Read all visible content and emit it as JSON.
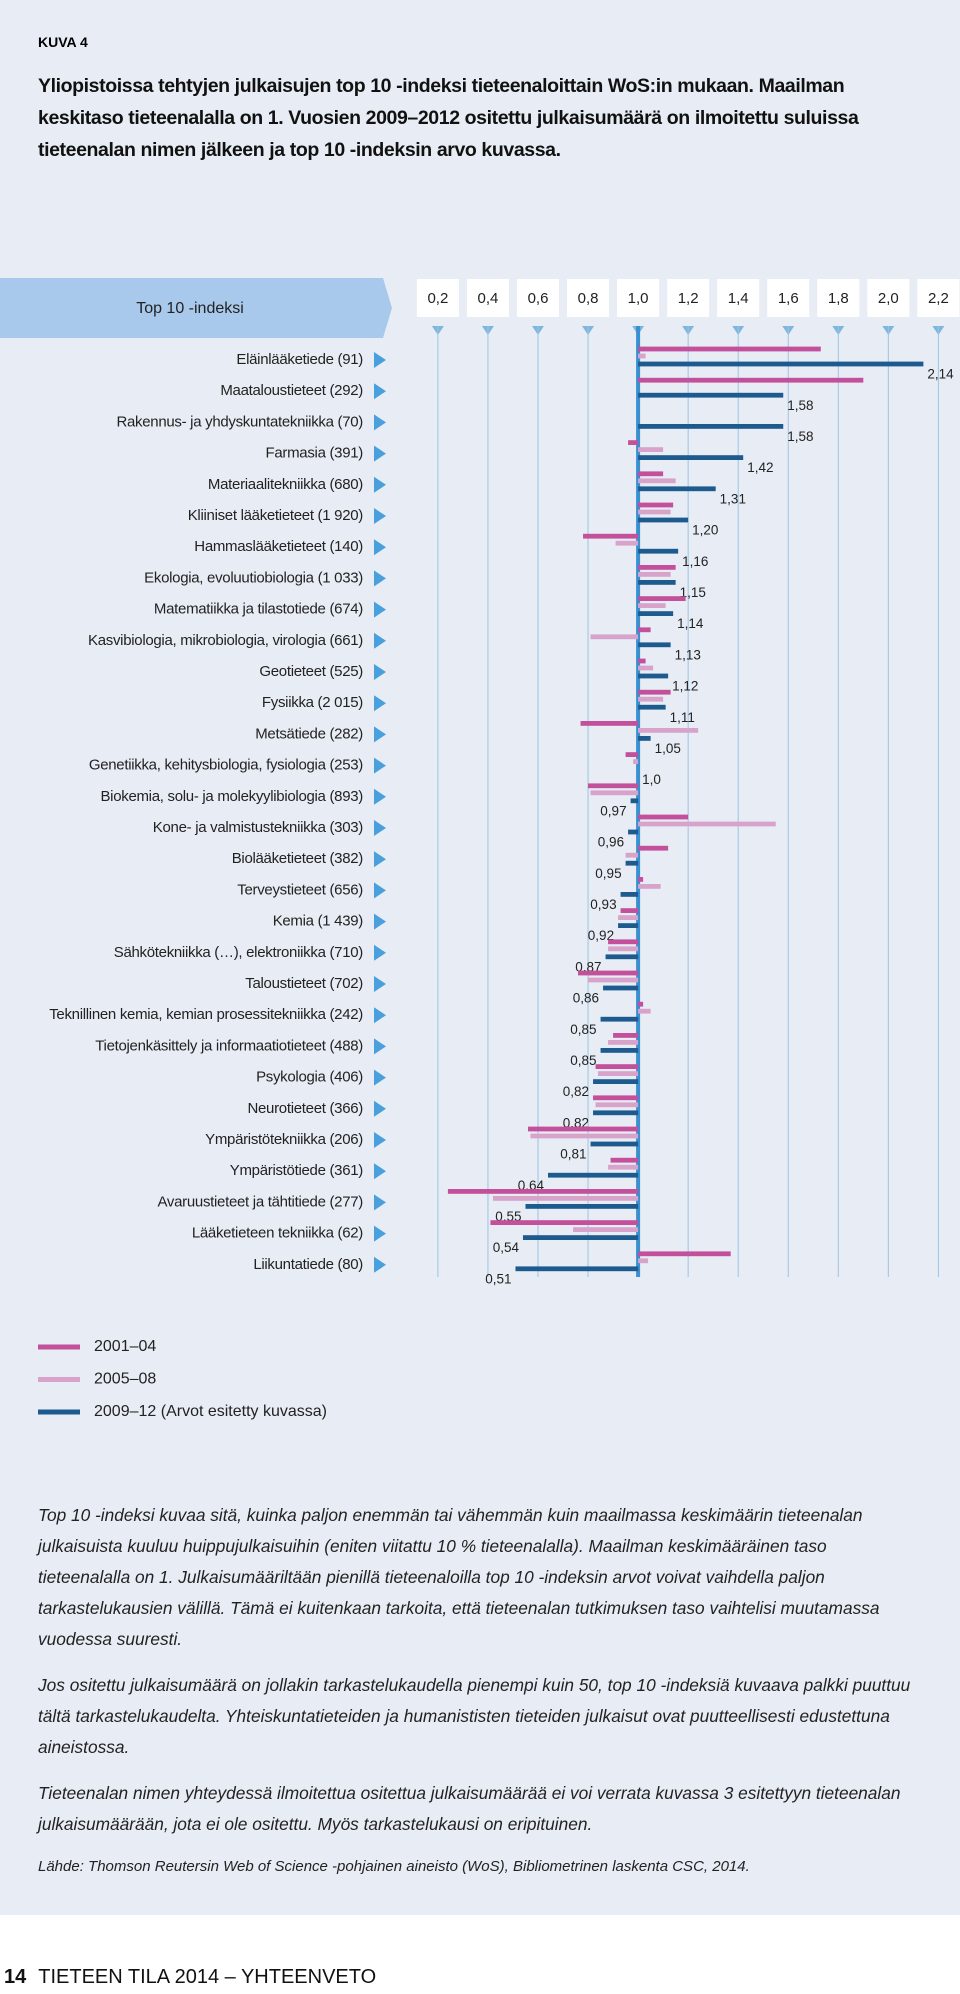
{
  "header": {
    "figure_label": "KUVA 4",
    "title": "Yliopistoissa tehtyjen julkaisujen top 10 -indeksi tieteenaloittain WoS:in mukaan. Maailman keskitaso tieteenalalla on 1. Vuosien 2009–2012 ositettu julkaisumäärä on ilmoitettu suluissa tieteenalan nimen jälkeen ja top 10 -indeksin arvo kuvassa."
  },
  "chart_data": {
    "type": "hbar",
    "x_label": "Top 10 -indeksi",
    "baseline": 1,
    "xlim": [
      0.2,
      2.2
    ],
    "xticks": [
      {
        "value": 0.2,
        "label": "0,2"
      },
      {
        "value": 0.4,
        "label": "0,4"
      },
      {
        "value": 0.6,
        "label": "0,6"
      },
      {
        "value": 0.8,
        "label": "0,8"
      },
      {
        "value": 1.0,
        "label": "1,0"
      },
      {
        "value": 1.2,
        "label": "1,2"
      },
      {
        "value": 1.4,
        "label": "1,4"
      },
      {
        "value": 1.6,
        "label": "1,6"
      },
      {
        "value": 1.8,
        "label": "1,8"
      },
      {
        "value": 2.0,
        "label": "2,0"
      },
      {
        "value": 2.2,
        "label": "2,2"
      }
    ],
    "categories": [
      "Eläinlääketiede (91)",
      "Maataloustieteet (292)",
      "Rakennus- ja yhdyskuntatekniikka (70)",
      "Farmasia (391)",
      "Materiaalitekniikka (680)",
      "Kliiniset lääketieteet (1 920)",
      "Hammaslääketieteet (140)",
      "Ekologia, evoluutiobiologia (1 033)",
      "Matematiikka ja tilastotiede (674)",
      "Kasvibiologia, mikrobiologia, virologia (661)",
      "Geotieteet (525)",
      "Fysiikka (2 015)",
      "Metsätiede (282)",
      "Genetiikka, kehitysbiologia, fysiologia (253)",
      "Biokemia, solu- ja molekyylibiologia (893)",
      "Kone- ja valmistustekniikka (303)",
      "Biolääketieteet (382)",
      "Terveystieteet (656)",
      "Kemia (1 439)",
      "Sähkötekniikka (…), elektroniikka (710)",
      "Taloustieteet (702)",
      "Teknillinen kemia, kemian prosessitekniikka (242)",
      "Tietojenkäsittely ja informaatiotieteet (488)",
      "Psykologia (406)",
      "Neurotieteet (366)",
      "Ympäristötekniikka (206)",
      "Ympäristötiede (361)",
      "Avaruustieteet ja tähtitiede (277)",
      "Lääketieteen tekniikka (62)",
      "Liikuntatiede (80)"
    ],
    "series": [
      {
        "name": "2001–04",
        "color": "#c2509a",
        "values": [
          1.73,
          1.9,
          null,
          0.96,
          1.1,
          1.14,
          0.78,
          1.15,
          1.19,
          1.05,
          1.03,
          1.13,
          0.77,
          0.95,
          0.8,
          1.2,
          1.12,
          1.02,
          0.93,
          0.88,
          0.76,
          1.02,
          0.9,
          0.83,
          0.82,
          0.56,
          0.89,
          0.24,
          0.41,
          1.37
        ]
      },
      {
        "name": "2005–08",
        "color": "#d7a3cb",
        "values": [
          1.03,
          null,
          null,
          1.1,
          1.15,
          1.13,
          0.91,
          1.13,
          1.11,
          0.81,
          1.06,
          1.1,
          1.24,
          0.98,
          0.81,
          1.55,
          0.95,
          1.09,
          0.92,
          0.88,
          0.8,
          1.05,
          0.88,
          0.84,
          0.83,
          0.57,
          0.88,
          0.42,
          0.74,
          1.04
        ]
      },
      {
        "name": "2009–12 (Arvot esitetty kuvassa)",
        "color": "#1d5a8e",
        "values": [
          2.14,
          1.58,
          1.58,
          1.42,
          1.31,
          1.2,
          1.16,
          1.15,
          1.14,
          1.13,
          1.12,
          1.11,
          1.05,
          1.0,
          0.97,
          0.96,
          0.95,
          0.93,
          0.92,
          0.87,
          0.86,
          0.85,
          0.85,
          0.82,
          0.82,
          0.81,
          0.64,
          0.55,
          0.54,
          0.51
        ],
        "value_labels": [
          "2,14",
          "1,58",
          "1,58",
          "1,42",
          "1,31",
          "1,20",
          "1,16",
          "1,15",
          "1,14",
          "1,13",
          "1,12",
          "1,11",
          "1,05",
          "1,0",
          "0,97",
          "0,96",
          "0,95",
          "0,93",
          "0,92",
          "0,87",
          "0,86",
          "0,85",
          "0,85",
          "0,82",
          "0,82",
          "0,81",
          "0,64",
          "0,55",
          "0,54",
          "0,51"
        ]
      }
    ]
  },
  "notes": [
    "Top 10 -indeksi kuvaa sitä, kuinka paljon enemmän tai vähemmän kuin maailmassa keskimäärin tieteenalan julkaisuista kuuluu huippujulkaisuihin (eniten viitattu 10 % tieteenalalla). Maailman keskimääräinen taso tieteenalalla on 1. Julkaisumääriltään pienillä tieteenaloilla top 10 -indeksin arvot voivat vaihdella paljon tarkastelukausien välillä. Tämä ei kuitenkaan tarkoita, että tieteenalan tutkimuksen taso vaihtelisi muutamassa vuodessa suuresti.",
    "Jos ositettu julkaisumäärä on jollakin tarkastelukaudella pienempi kuin 50, top 10 -indeksiä kuvaava palkki puuttuu tältä tarkastelukaudelta. Yhteiskuntatieteiden ja humanististen tieteiden julkaisut ovat puutteellisesti edustettuna aineistossa.",
    "Tieteenalan nimen yhteydessä ilmoitettua ositettua julkaisumäärää ei voi verrata kuvassa 3 esitettyyn tieteenalan julkaisumäärään, jota ei ole ositettu. Myös tarkastelukausi on eripituinen."
  ],
  "source": "Lähde: Thomson Reutersin Web of Science -pohjainen aineisto (WoS), Bibliometrinen laskenta CSC, 2014.",
  "footer": {
    "page": "14",
    "text": "TIETEEN TILA 2014 – YHTEENVETO"
  }
}
